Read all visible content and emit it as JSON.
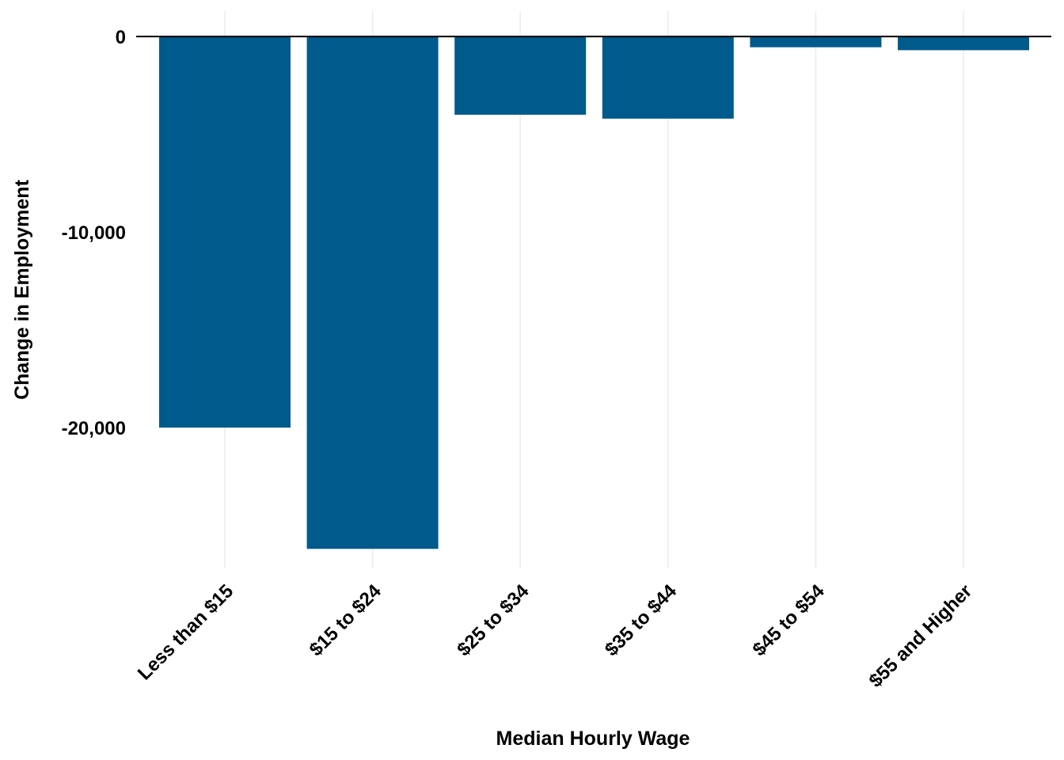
{
  "chart_data": {
    "type": "bar",
    "title": "",
    "xlabel": "Median Hourly Wage",
    "ylabel": "Change in Employment",
    "categories": [
      "Less than $15",
      "$15 to $24",
      "$25 to $34",
      "$35 to $44",
      "$45 to $54",
      "$55 and Higher"
    ],
    "values": [
      -20000,
      -26200,
      -4000,
      -4200,
      -550,
      -700
    ],
    "ylim": [
      -27200,
      1300
    ],
    "yticks": [
      0,
      -10000,
      -20000
    ],
    "ytick_labels": [
      "0",
      "-10,000",
      "-20,000"
    ],
    "grid": "vertical major",
    "legend": "none",
    "colors": {
      "bar": "#005A8C",
      "grid": "#EBEBEB",
      "zero_line": "#000000"
    }
  }
}
